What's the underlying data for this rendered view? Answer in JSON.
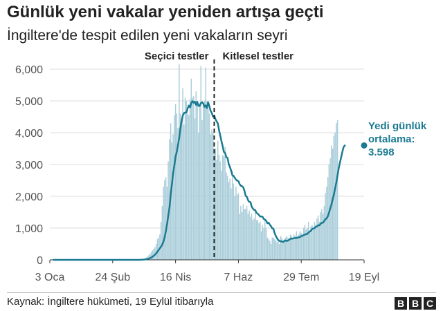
{
  "header": {
    "title": "Günlük yeni vakalar yeniden artışa geçti",
    "subtitle": "İngiltere'de tespit edilen yeni vakaların seyri"
  },
  "footer": {
    "source": "Kaynak: İngiltere hükümeti, 19 Eylül itibarıyla",
    "logo_letters": [
      "B",
      "B",
      "C"
    ]
  },
  "chart_data": {
    "type": "bar",
    "title": "Günlük yeni vakalar yeniden artışa geçti",
    "subtitle": "İngiltere'de tespit edilen yeni vakaların seyri",
    "xlabel": "",
    "ylabel": "",
    "ylim": [
      0,
      6000
    ],
    "y_ticks": [
      0,
      1000,
      2000,
      3000,
      4000,
      5000,
      6000
    ],
    "y_tick_labels": [
      "0",
      "1,000",
      "2,000",
      "3,000",
      "4,000",
      "5,000",
      "6,000"
    ],
    "x_range": [
      "2020-01-03",
      "2020-09-19"
    ],
    "x_ticks": [
      "2020-01-03",
      "2020-02-24",
      "2020-04-16",
      "2020-06-07",
      "2020-07-29",
      "2020-09-19"
    ],
    "x_tick_labels": [
      "3 Oca",
      "24 Şub",
      "16 Nis",
      "7 Haz",
      "29 Tem",
      "19 Eyl"
    ],
    "grid": true,
    "colors": {
      "bars": "#a9cdd9",
      "line": "#1a7a91",
      "divider": "#222222",
      "annotation": "#1a7a91"
    },
    "phases": [
      {
        "label": "Seçici testler",
        "side": "left"
      },
      {
        "label": "Kitlesel testler",
        "side": "right"
      }
    ],
    "divider_date": "2020-05-18",
    "series": [
      {
        "kind": "bar"
      },
      {
        "kind": "line"
      }
    ],
    "daily_series_start": "2020-01-03",
    "daily_cases": [
      0,
      0,
      0,
      0,
      0,
      0,
      0,
      0,
      0,
      0,
      0,
      0,
      0,
      0,
      0,
      0,
      0,
      0,
      0,
      0,
      0,
      0,
      0,
      0,
      0,
      0,
      0,
      0,
      0,
      0,
      0,
      0,
      0,
      0,
      0,
      0,
      0,
      0,
      0,
      0,
      0,
      0,
      0,
      0,
      0,
      0,
      0,
      0,
      0,
      0,
      0,
      0,
      0,
      0,
      0,
      0,
      0,
      0,
      0,
      0,
      0,
      0,
      0,
      0,
      0,
      0,
      0,
      0,
      0,
      0,
      0,
      0,
      0,
      5,
      10,
      15,
      20,
      30,
      40,
      60,
      80,
      120,
      150,
      200,
      250,
      300,
      350,
      400,
      500,
      650,
      700,
      800,
      1200,
      1700,
      2300,
      2500,
      2600,
      2300,
      3100,
      3800,
      4300,
      3700,
      3950,
      4550,
      4900,
      4600,
      4150,
      6150,
      4600,
      4400,
      5400,
      4250,
      5100,
      5000,
      4600,
      4550,
      5050,
      5700,
      5100,
      5150,
      4450,
      5300,
      4950,
      4000,
      4900,
      6100,
      4400,
      4950,
      5000,
      6050,
      5000,
      4750,
      4600,
      3950,
      4100,
      4000,
      3500,
      3500,
      3150,
      3750,
      3300,
      3100,
      2800,
      3300,
      3250,
      3550,
      2750,
      2650,
      2450,
      2550,
      2250,
      2800,
      2400,
      2000,
      2300,
      2050,
      2100,
      1450,
      1700,
      1500,
      1750,
      1600,
      1600,
      1700,
      1450,
      1550,
      1350,
      1450,
      1250,
      1300,
      1500,
      1250,
      1250,
      1150,
      1200,
      900,
      1100,
      1000,
      1300,
      1000,
      700,
      650,
      600,
      500,
      700,
      700,
      650,
      600,
      550,
      600,
      500,
      750,
      700,
      600,
      650,
      700,
      750,
      700,
      600,
      800,
      750,
      700,
      800,
      750,
      900,
      750,
      800,
      900,
      850,
      800,
      1000,
      1100,
      950,
      1000,
      1200,
      900,
      1050,
      1100,
      1000,
      1200,
      1100,
      1300,
      1400,
      1200,
      1500,
      1600,
      1450,
      1700,
      2100,
      2300,
      2600,
      3000,
      3200,
      3600,
      3500,
      3900,
      4000,
      4300,
      4400
    ],
    "seven_day_average_series_start": "2020-01-06",
    "seven_day_average": [
      0,
      0,
      0,
      0,
      0,
      0,
      0,
      0,
      0,
      0,
      0,
      0,
      0,
      0,
      0,
      0,
      0,
      0,
      0,
      0,
      0,
      0,
      0,
      0,
      0,
      0,
      0,
      0,
      0,
      0,
      0,
      0,
      0,
      0,
      0,
      0,
      0,
      0,
      0,
      0,
      0,
      0,
      0,
      0,
      0,
      0,
      0,
      0,
      0,
      0,
      0,
      0,
      0,
      0,
      0,
      0,
      0,
      0,
      0,
      0,
      0,
      0,
      0,
      0,
      0,
      0,
      0,
      0,
      0,
      0,
      0,
      0,
      2,
      4,
      6,
      10,
      14,
      20,
      28,
      41,
      57,
      76,
      100,
      129,
      164,
      207,
      257,
      310,
      364,
      414,
      479,
      572,
      719,
      897,
      1132,
      1388,
      1653,
      2059,
      2386,
      2729,
      2972,
      3243,
      3393,
      3621,
      3817,
      4126,
      4364,
      4540,
      4616,
      4633,
      4636,
      4768,
      4854,
      4795,
      4935,
      4992,
      4943,
      4975,
      4870,
      4970,
      4839,
      4848,
      4936,
      4958,
      4910,
      4812,
      4858,
      4772,
      4957,
      4832,
      4690,
      4619,
      4504,
      4536,
      4427,
      4356,
      4292,
      4076,
      3906,
      3729,
      3575,
      3396,
      3363,
      3232,
      3209,
      3012,
      2917,
      2809,
      2664,
      2642,
      2582,
      2522,
      2493,
      2478,
      2386,
      2330,
      2320,
      2284,
      2179,
      2016,
      1984,
      1876,
      1822,
      1816,
      1674,
      1614,
      1571,
      1564,
      1479,
      1450,
      1413,
      1362,
      1364,
      1357,
      1286,
      1262,
      1233,
      1151,
      1169,
      1107,
      1059,
      993,
      979,
      836,
      752,
      679,
      621,
      596,
      581,
      583,
      564,
      593,
      608,
      594,
      607,
      628,
      664,
      669,
      668,
      684,
      686,
      686,
      695,
      708,
      722,
      746,
      757,
      779,
      794,
      811,
      813,
      857,
      892,
      916,
      969,
      986,
      1000,
      1042,
      1051,
      1086,
      1090,
      1132,
      1169,
      1168,
      1221,
      1279,
      1307,
      1371,
      1493,
      1614,
      1743,
      1907,
      2050,
      2243,
      2417,
      2649,
      2871,
      3061,
      3221,
      3393,
      3543,
      3598
    ],
    "annotation": {
      "label_lines": [
        "Yedi günlük",
        "ortalama:"
      ],
      "value": 3598,
      "value_label": "3.598",
      "date": "2020-09-19"
    }
  }
}
